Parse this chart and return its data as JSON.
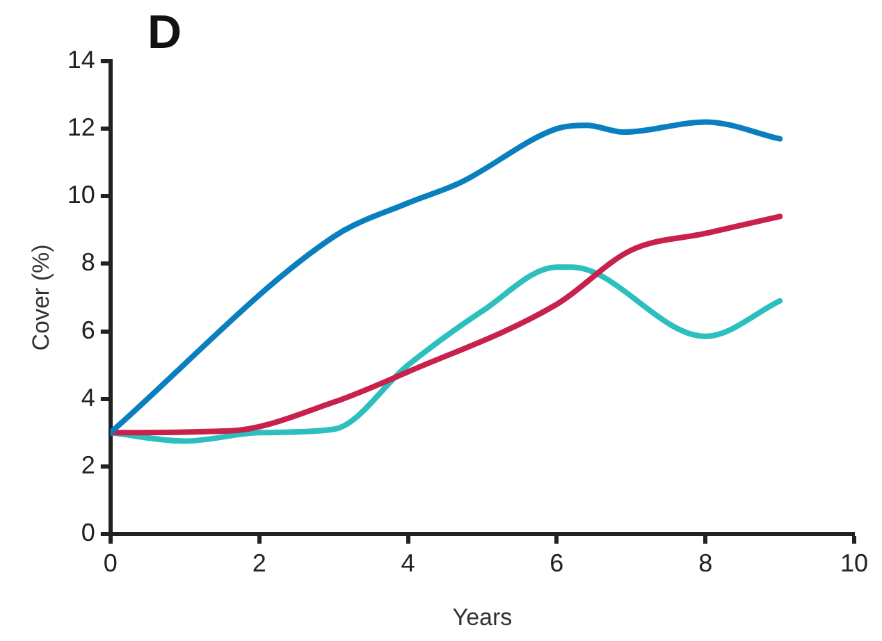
{
  "chart_data": {
    "type": "line",
    "xlabel": "Years",
    "ylabel": "Cover (%)",
    "annotations": [
      "D"
    ],
    "xlim": [
      0,
      10
    ],
    "xticks": [
      0,
      2,
      4,
      6,
      8,
      10
    ],
    "ylim": [
      0,
      14
    ],
    "yticks": [
      0,
      2,
      4,
      6,
      8,
      10,
      12,
      14
    ],
    "grid": false,
    "legend": false,
    "marker": "none",
    "line_style": "solid",
    "series": [
      {
        "color": "#0a7fbf",
        "x": [
          0,
          3,
          4,
          4.7,
          6,
          6.4,
          6.9,
          8,
          9
        ],
        "values": [
          3,
          8.8,
          9.8,
          10.4,
          12,
          12.1,
          11.9,
          12.2,
          11.7
        ]
      },
      {
        "color": "#c8214b",
        "x": [
          0,
          1.6,
          3,
          4,
          6,
          7,
          8,
          9
        ],
        "values": [
          3,
          3.05,
          3.9,
          4.8,
          6.8,
          8.4,
          8.9,
          9.4
        ]
      },
      {
        "color": "#2bbfbd",
        "x": [
          0,
          1,
          2,
          3,
          4,
          5,
          6,
          6.2,
          8,
          9
        ],
        "values": [
          3,
          2.75,
          3,
          3.1,
          5,
          6.6,
          7.9,
          7.9,
          5.85,
          6.9
        ]
      }
    ]
  }
}
